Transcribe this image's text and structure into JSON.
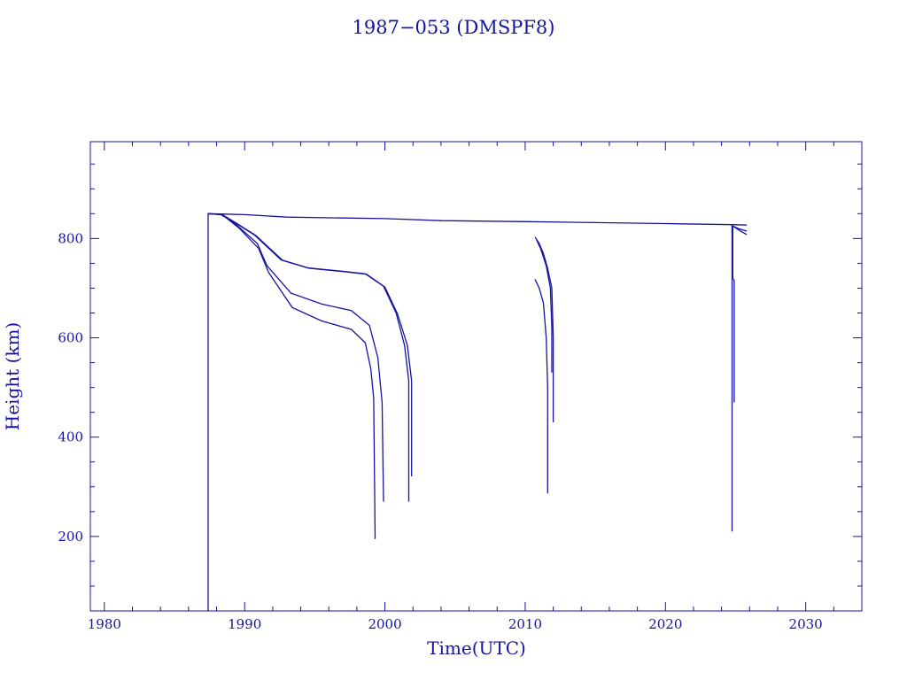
{
  "chart_data": {
    "type": "line",
    "title": "1987−053 (DMSPF8)",
    "xlabel": "Time(UTC)",
    "ylabel": "Height (km)",
    "xlim": [
      1979,
      2034
    ],
    "ylim": [
      50,
      995
    ],
    "xticks": [
      1980,
      1990,
      2000,
      2010,
      2020,
      2030
    ],
    "xtick_labels": [
      "1980",
      "1990",
      "2000",
      "2010",
      "2020",
      "2030"
    ],
    "yticks": [
      200,
      400,
      600,
      800
    ],
    "ytick_labels": [
      "200",
      "400",
      "600",
      "800"
    ],
    "x_minor_step": 2,
    "y_minor_step": 50,
    "grid": false,
    "color": "#1414a0",
    "series": [
      {
        "name": "main",
        "points": [
          [
            1987.4,
            50
          ],
          [
            1987.4,
            850
          ],
          [
            1990,
            848
          ],
          [
            1993,
            843
          ],
          [
            2000,
            840
          ],
          [
            2004,
            836
          ],
          [
            2010,
            834
          ],
          [
            2020,
            830
          ],
          [
            2024.7,
            828
          ],
          [
            2025.8,
            827
          ]
        ]
      },
      {
        "name": "decay-b1",
        "points": [
          [
            1987.4,
            850
          ],
          [
            1988.3,
            848
          ],
          [
            1989.2,
            834
          ],
          [
            1990.7,
            807
          ],
          [
            1992.6,
            757
          ],
          [
            1994.5,
            741
          ],
          [
            1997.0,
            734
          ],
          [
            1998.6,
            729
          ],
          [
            1999.9,
            704
          ],
          [
            2000.8,
            650
          ],
          [
            2001.4,
            585
          ],
          [
            2001.7,
            513
          ],
          [
            2001.7,
            270
          ]
        ]
      },
      {
        "name": "decay-b2",
        "points": [
          [
            1987.4,
            850
          ],
          [
            1988.4,
            848
          ],
          [
            1989.3,
            833
          ],
          [
            1990.8,
            806
          ],
          [
            1992.7,
            756
          ],
          [
            1994.6,
            740
          ],
          [
            1997.1,
            733
          ],
          [
            1998.7,
            728
          ],
          [
            2000.0,
            702
          ],
          [
            2000.9,
            648
          ],
          [
            2001.6,
            585
          ],
          [
            2001.9,
            513
          ],
          [
            2001.9,
            321
          ]
        ]
      },
      {
        "name": "decay-c1",
        "points": [
          [
            1987.4,
            850
          ],
          [
            1988.4,
            848
          ],
          [
            1989.6,
            821
          ],
          [
            1991.0,
            780
          ],
          [
            1991.7,
            732
          ],
          [
            1993.4,
            661
          ],
          [
            1995.5,
            634
          ],
          [
            1997.6,
            617
          ],
          [
            1998.6,
            590
          ],
          [
            1999.0,
            537
          ],
          [
            1999.2,
            478
          ],
          [
            1999.3,
            195
          ]
        ]
      },
      {
        "name": "decay-c2",
        "points": [
          [
            1987.4,
            850
          ],
          [
            1988.4,
            848
          ],
          [
            1989.4,
            828
          ],
          [
            1990.9,
            790
          ],
          [
            1991.6,
            745
          ],
          [
            1993.3,
            690
          ],
          [
            1995.5,
            668
          ],
          [
            1997.6,
            655
          ],
          [
            1998.9,
            625
          ],
          [
            1999.5,
            560
          ],
          [
            1999.8,
            470
          ],
          [
            1999.9,
            270
          ]
        ]
      },
      {
        "name": "decay-d1",
        "points": [
          [
            2010.7,
            803
          ],
          [
            2011.0,
            790
          ],
          [
            2011.3,
            770
          ],
          [
            2011.6,
            740
          ],
          [
            2011.9,
            700
          ],
          [
            2012.0,
            600
          ],
          [
            2012.0,
            430
          ]
        ]
      },
      {
        "name": "decay-d2",
        "points": [
          [
            2010.8,
            798
          ],
          [
            2011.1,
            780
          ],
          [
            2011.5,
            745
          ],
          [
            2011.8,
            700
          ],
          [
            2011.9,
            620
          ],
          [
            2011.9,
            530
          ]
        ]
      },
      {
        "name": "decay-d3",
        "points": [
          [
            2010.7,
            718
          ],
          [
            2011.0,
            700
          ],
          [
            2011.3,
            670
          ],
          [
            2011.5,
            600
          ],
          [
            2011.6,
            500
          ],
          [
            2011.6,
            287
          ]
        ]
      },
      {
        "name": "decay-e1",
        "points": [
          [
            2024.75,
            828
          ],
          [
            2024.75,
            210
          ]
        ]
      },
      {
        "name": "decay-e2",
        "points": [
          [
            2024.8,
            825
          ],
          [
            2024.8,
            720
          ],
          [
            2024.9,
            715
          ],
          [
            2024.9,
            470
          ]
        ]
      },
      {
        "name": "decay-e3",
        "points": [
          [
            2024.8,
            825
          ],
          [
            2025.2,
            820
          ],
          [
            2025.8,
            815
          ]
        ]
      },
      {
        "name": "decay-e4",
        "points": [
          [
            2024.8,
            825
          ],
          [
            2025.3,
            816
          ],
          [
            2025.8,
            808
          ]
        ]
      }
    ]
  }
}
